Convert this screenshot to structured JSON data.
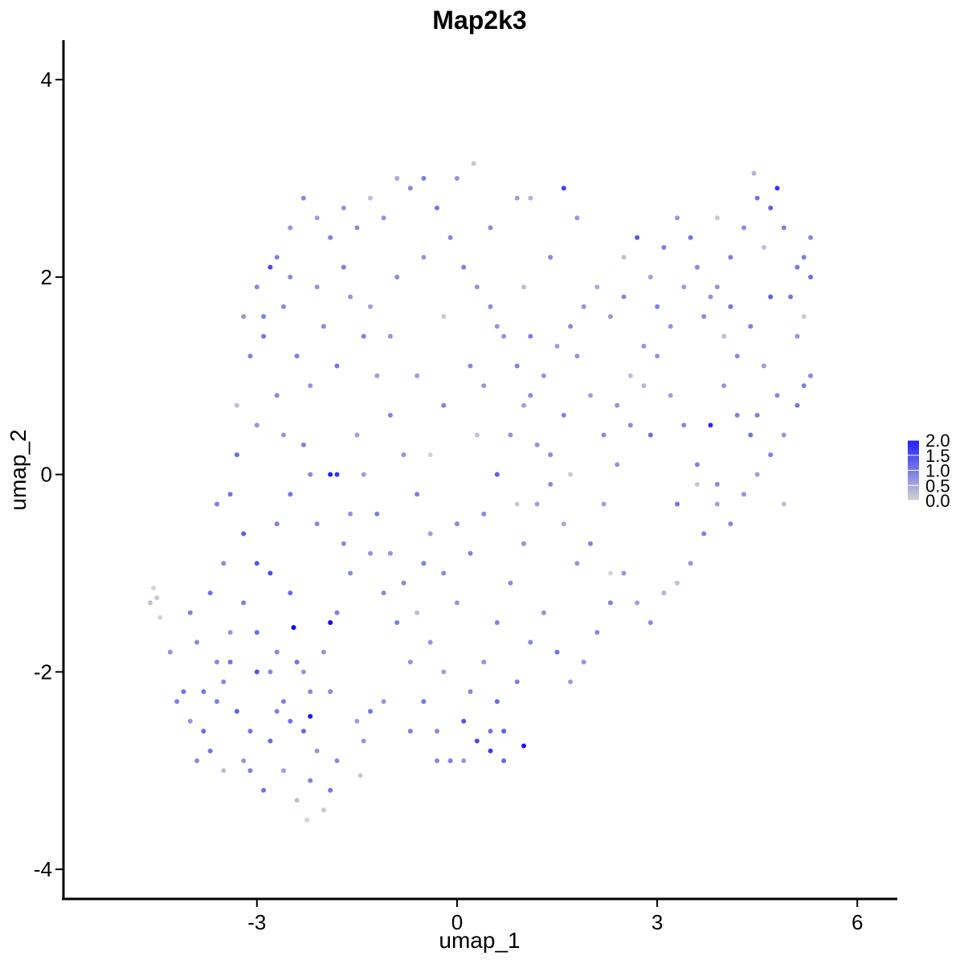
{
  "chart_data": {
    "type": "scatter",
    "title": "Map2k3",
    "xlabel": "umap_1",
    "ylabel": "umap_2",
    "xlim": [
      -5.9,
      6.6
    ],
    "ylim": [
      -4.3,
      4.4
    ],
    "xticks": [
      -3,
      0,
      3,
      6
    ],
    "xtick_labels": [
      "-3",
      "0",
      "3",
      "6"
    ],
    "yticks": [
      -4,
      -2,
      0,
      2,
      4
    ],
    "ytick_labels": [
      "-4",
      "-2",
      "0",
      "2",
      "4"
    ],
    "grid": false,
    "point_color_low": "#d3d3d3",
    "point_color_high": "#0000ff",
    "color_scale": {
      "min": 0.0,
      "max": 2.0,
      "ticks": [
        0.0,
        0.5,
        1.0,
        1.5,
        2.0
      ],
      "tick_labels": [
        "0.0",
        "0.5",
        "1.0",
        "1.5",
        "2.0"
      ],
      "placement": "right"
    },
    "points": [
      [
        -4.6,
        -1.3,
        0.2
      ],
      [
        -4.5,
        -1.25,
        0.1
      ],
      [
        -4.55,
        -1.15,
        0.0
      ],
      [
        -4.45,
        -1.45,
        0.0
      ],
      [
        -4.3,
        -1.8,
        0.6
      ],
      [
        -4.1,
        -2.2,
        0.9
      ],
      [
        -4.0,
        -1.4,
        0.8
      ],
      [
        -3.9,
        -1.7,
        0.7
      ],
      [
        -3.8,
        -2.6,
        1.0
      ],
      [
        -3.7,
        -2.8,
        0.9
      ],
      [
        -3.6,
        -2.3,
        0.8
      ],
      [
        -3.5,
        -2.1,
        0.7
      ],
      [
        -3.4,
        -1.9,
        0.9
      ],
      [
        -3.3,
        -2.4,
        1.1
      ],
      [
        -3.2,
        -2.9,
        0.6
      ],
      [
        -3.1,
        -3.0,
        0.8
      ],
      [
        -3.0,
        -2.0,
        1.2
      ],
      [
        -2.9,
        -3.2,
        0.9
      ],
      [
        -2.8,
        -2.7,
        1.0
      ],
      [
        -2.7,
        -1.8,
        0.7
      ],
      [
        -2.6,
        -3.0,
        0.5
      ],
      [
        -2.5,
        -2.5,
        0.9
      ],
      [
        -2.4,
        -3.3,
        0.2
      ],
      [
        -2.3,
        -2.6,
        1.0
      ],
      [
        -2.25,
        -3.5,
        0.0
      ],
      [
        -2.2,
        -3.1,
        0.8
      ],
      [
        -2.1,
        -2.8,
        0.6
      ],
      [
        -2.0,
        -3.4,
        0.1
      ],
      [
        -1.9,
        -3.2,
        0.9
      ],
      [
        -1.8,
        -2.9,
        0.7
      ],
      [
        -1.45,
        -3.05,
        0.1
      ],
      [
        -1.4,
        -2.7,
        0.6
      ],
      [
        -1.3,
        -2.4,
        0.9
      ],
      [
        -2.45,
        -1.55,
        2.0
      ],
      [
        -2.2,
        -2.45,
        1.8
      ],
      [
        -1.9,
        -1.5,
        1.9
      ],
      [
        -2.8,
        -1.0,
        1.3
      ],
      [
        -3.2,
        -0.6,
        1.1
      ],
      [
        -3.5,
        -0.9,
        0.7
      ],
      [
        -3.7,
        -1.2,
        0.9
      ],
      [
        -3.6,
        -0.3,
        0.8
      ],
      [
        -3.3,
        0.2,
        1.0
      ],
      [
        -3.0,
        0.5,
        0.6
      ],
      [
        -2.7,
        0.8,
        0.7
      ],
      [
        -2.5,
        -0.2,
        0.9
      ],
      [
        -2.3,
        0.3,
        0.8
      ],
      [
        -2.1,
        -0.5,
        0.7
      ],
      [
        -1.9,
        0.0,
        1.7
      ],
      [
        -1.8,
        0.0,
        1.5
      ],
      [
        -1.6,
        -0.4,
        0.6
      ],
      [
        -1.5,
        0.4,
        0.5
      ],
      [
        -1.3,
        -0.8,
        0.6
      ],
      [
        -1.1,
        -1.2,
        0.7
      ],
      [
        -0.9,
        -1.5,
        0.8
      ],
      [
        -0.7,
        -1.9,
        0.6
      ],
      [
        -0.5,
        -2.3,
        0.9
      ],
      [
        -0.3,
        -2.6,
        0.7
      ],
      [
        -0.1,
        -2.9,
        0.8
      ],
      [
        0.1,
        -2.5,
        1.2
      ],
      [
        0.3,
        -2.7,
        1.3
      ],
      [
        0.5,
        -2.8,
        1.4
      ],
      [
        0.6,
        -2.3,
        1.0
      ],
      [
        0.7,
        -2.6,
        1.1
      ],
      [
        1.0,
        -2.75,
        1.8
      ],
      [
        0.9,
        -2.1,
        0.8
      ],
      [
        1.1,
        -1.7,
        0.7
      ],
      [
        1.3,
        -1.4,
        0.6
      ],
      [
        1.5,
        -1.8,
        0.9
      ],
      [
        1.7,
        -2.1,
        0.5
      ],
      [
        1.9,
        -1.9,
        0.6
      ],
      [
        2.1,
        -1.6,
        0.7
      ],
      [
        2.3,
        -1.3,
        0.8
      ],
      [
        2.5,
        -1.0,
        0.6
      ],
      [
        2.7,
        -1.3,
        0.5
      ],
      [
        2.9,
        -1.5,
        0.7
      ],
      [
        3.1,
        -1.2,
        0.3
      ],
      [
        3.3,
        -1.1,
        0.2
      ],
      [
        3.5,
        -0.9,
        0.6
      ],
      [
        3.7,
        -0.6,
        0.8
      ],
      [
        3.9,
        -0.3,
        0.5
      ],
      [
        4.1,
        -0.5,
        0.7
      ],
      [
        4.3,
        -0.2,
        0.6
      ],
      [
        4.5,
        0.0,
        0.5
      ],
      [
        4.7,
        0.2,
        0.8
      ],
      [
        4.9,
        0.4,
        0.6
      ],
      [
        5.1,
        0.7,
        0.9
      ],
      [
        5.2,
        0.9,
        0.8
      ],
      [
        5.3,
        1.0,
        0.7
      ],
      [
        5.1,
        1.4,
        0.6
      ],
      [
        5.0,
        1.8,
        0.9
      ],
      [
        5.2,
        2.2,
        0.8
      ],
      [
        5.3,
        2.4,
        0.7
      ],
      [
        5.3,
        2.0,
        1.0
      ],
      [
        5.1,
        2.1,
        0.9
      ],
      [
        4.9,
        2.5,
        0.8
      ],
      [
        4.7,
        2.7,
        1.1
      ],
      [
        4.5,
        2.8,
        0.9
      ],
      [
        4.45,
        3.05,
        0.3
      ],
      [
        4.3,
        2.5,
        0.7
      ],
      [
        4.1,
        2.2,
        0.8
      ],
      [
        4.8,
        2.9,
        1.5
      ],
      [
        3.9,
        1.9,
        0.6
      ],
      [
        3.7,
        1.6,
        0.7
      ],
      [
        3.5,
        2.4,
        0.9
      ],
      [
        3.3,
        2.6,
        0.6
      ],
      [
        3.1,
        2.3,
        0.8
      ],
      [
        2.9,
        2.0,
        0.5
      ],
      [
        2.7,
        2.4,
        1.2
      ],
      [
        2.5,
        1.8,
        0.7
      ],
      [
        2.3,
        1.6,
        0.6
      ],
      [
        2.1,
        1.9,
        0.4
      ],
      [
        1.9,
        1.7,
        0.6
      ],
      [
        1.7,
        1.5,
        0.7
      ],
      [
        1.5,
        1.3,
        0.5
      ],
      [
        1.3,
        1.0,
        0.6
      ],
      [
        1.1,
        0.8,
        0.7
      ],
      [
        0.9,
        1.1,
        0.8
      ],
      [
        0.7,
        1.4,
        0.6
      ],
      [
        0.5,
        1.7,
        0.7
      ],
      [
        0.3,
        1.9,
        0.6
      ],
      [
        0.1,
        2.1,
        0.8
      ],
      [
        -0.1,
        2.4,
        0.7
      ],
      [
        -0.3,
        2.7,
        0.9
      ],
      [
        -0.5,
        3.0,
        0.8
      ],
      [
        -0.7,
        2.9,
        0.7
      ],
      [
        -0.9,
        3.0,
        0.4
      ],
      [
        -1.1,
        2.6,
        0.6
      ],
      [
        -1.3,
        2.8,
        0.2
      ],
      [
        -1.5,
        2.5,
        0.7
      ],
      [
        -1.7,
        2.7,
        0.6
      ],
      [
        -1.9,
        2.4,
        0.8
      ],
      [
        -2.1,
        2.6,
        0.5
      ],
      [
        -2.3,
        2.8,
        0.7
      ],
      [
        -2.5,
        2.5,
        0.6
      ],
      [
        -2.7,
        2.2,
        0.8
      ],
      [
        -2.8,
        2.1,
        1.3
      ],
      [
        -3.0,
        1.9,
        0.7
      ],
      [
        -3.2,
        1.6,
        0.6
      ],
      [
        -3.1,
        1.2,
        0.8
      ],
      [
        -3.3,
        0.7,
        0.2
      ],
      [
        -2.9,
        1.4,
        0.9
      ],
      [
        -2.6,
        1.7,
        0.7
      ],
      [
        -2.4,
        1.2,
        0.8
      ],
      [
        -2.2,
        0.9,
        0.6
      ],
      [
        -2.0,
        1.5,
        0.7
      ],
      [
        -1.8,
        1.1,
        0.9
      ],
      [
        -1.6,
        1.8,
        0.6
      ],
      [
        -1.4,
        1.4,
        0.8
      ],
      [
        -1.2,
        1.0,
        0.5
      ],
      [
        -1.0,
        0.6,
        0.7
      ],
      [
        -0.8,
        0.2,
        0.6
      ],
      [
        -0.6,
        -0.2,
        0.8
      ],
      [
        -0.4,
        -0.6,
        0.5
      ],
      [
        -0.2,
        -1.0,
        0.7
      ],
      [
        0.0,
        -1.3,
        0.6
      ],
      [
        0.2,
        -0.8,
        0.8
      ],
      [
        0.4,
        -0.4,
        0.7
      ],
      [
        0.6,
        0.0,
        1.1
      ],
      [
        0.8,
        0.4,
        0.6
      ],
      [
        1.0,
        0.7,
        0.5
      ],
      [
        1.2,
        0.3,
        0.6
      ],
      [
        1.4,
        -0.1,
        0.7
      ],
      [
        1.6,
        -0.5,
        0.4
      ],
      [
        1.8,
        -0.9,
        0.6
      ],
      [
        2.0,
        -0.7,
        0.8
      ],
      [
        2.2,
        -0.3,
        0.5
      ],
      [
        2.4,
        0.1,
        0.6
      ],
      [
        2.6,
        0.5,
        0.7
      ],
      [
        2.8,
        0.9,
        0.3
      ],
      [
        3.0,
        1.2,
        0.6
      ],
      [
        3.2,
        0.8,
        0.5
      ],
      [
        3.4,
        0.5,
        0.7
      ],
      [
        3.6,
        0.1,
        0.8
      ],
      [
        3.8,
        0.5,
        1.6
      ],
      [
        4.0,
        0.9,
        0.6
      ],
      [
        4.2,
        1.2,
        0.7
      ],
      [
        4.4,
        1.5,
        0.8
      ],
      [
        4.6,
        1.1,
        0.5
      ],
      [
        4.8,
        0.8,
        0.7
      ],
      [
        4.4,
        0.4,
        0.9
      ],
      [
        4.2,
        0.6,
        0.8
      ],
      [
        4.0,
        1.4,
        0.2
      ],
      [
        3.8,
        1.8,
        0.6
      ],
      [
        3.6,
        2.1,
        0.7
      ],
      [
        3.4,
        1.9,
        0.5
      ],
      [
        3.2,
        1.5,
        0.6
      ],
      [
        3.0,
        1.7,
        0.8
      ],
      [
        2.8,
        1.3,
        0.6
      ],
      [
        2.6,
        1.0,
        0.2
      ],
      [
        2.4,
        0.7,
        0.6
      ],
      [
        2.2,
        0.4,
        0.7
      ],
      [
        2.0,
        0.8,
        0.5
      ],
      [
        1.8,
        1.2,
        0.6
      ],
      [
        1.6,
        0.6,
        0.8
      ],
      [
        1.4,
        0.2,
        0.7
      ],
      [
        1.2,
        -0.3,
        0.5
      ],
      [
        1.0,
        -0.7,
        0.6
      ],
      [
        0.8,
        -1.1,
        0.7
      ],
      [
        0.6,
        -1.5,
        0.8
      ],
      [
        0.4,
        -1.9,
        0.6
      ],
      [
        0.2,
        -2.2,
        0.7
      ],
      [
        -0.2,
        -2.0,
        0.5
      ],
      [
        -0.4,
        -1.7,
        0.6
      ],
      [
        -0.6,
        -1.4,
        0.2
      ],
      [
        -0.8,
        -1.1,
        0.7
      ],
      [
        -1.0,
        -0.8,
        0.6
      ],
      [
        -1.2,
        -0.4,
        0.8
      ],
      [
        -1.4,
        0.0,
        0.5
      ],
      [
        -1.6,
        -1.0,
        0.7
      ],
      [
        -1.8,
        -1.4,
        0.8
      ],
      [
        -2.0,
        -1.8,
        0.6
      ],
      [
        -2.2,
        -2.2,
        0.7
      ],
      [
        -2.4,
        -1.9,
        0.9
      ],
      [
        -2.6,
        -2.3,
        0.8
      ],
      [
        -2.8,
        -2.0,
        0.7
      ],
      [
        -3.0,
        -1.6,
        1.0
      ],
      [
        -3.2,
        -1.3,
        0.8
      ],
      [
        -3.4,
        -1.6,
        0.6
      ],
      [
        -3.6,
        -1.9,
        0.7
      ],
      [
        -3.8,
        -2.2,
        0.9
      ],
      [
        -4.0,
        -2.5,
        0.6
      ],
      [
        -4.2,
        -2.3,
        0.8
      ],
      [
        -3.9,
        -2.9,
        0.7
      ],
      [
        -3.5,
        -3.0,
        0.2
      ],
      [
        -3.1,
        -2.6,
        0.9
      ],
      [
        -2.7,
        -2.4,
        0.8
      ],
      [
        -2.3,
        -2.0,
        0.6
      ],
      [
        -1.9,
        -2.2,
        0.7
      ],
      [
        -1.5,
        -2.5,
        0.5
      ],
      [
        -1.1,
        -2.3,
        0.6
      ],
      [
        -0.7,
        -2.6,
        0.8
      ],
      [
        -0.3,
        -2.9,
        0.7
      ],
      [
        0.1,
        -2.9,
        0.6
      ],
      [
        0.5,
        -2.6,
        0.9
      ],
      [
        0.7,
        -2.9,
        1.0
      ],
      [
        -0.5,
        2.2,
        0.6
      ],
      [
        -0.9,
        2.0,
        0.7
      ],
      [
        -1.3,
        1.7,
        0.5
      ],
      [
        -1.7,
        2.1,
        0.8
      ],
      [
        -2.1,
        1.9,
        0.6
      ],
      [
        -2.5,
        2.0,
        0.7
      ],
      [
        -2.9,
        1.6,
        0.8
      ],
      [
        -2.6,
        0.4,
        0.6
      ],
      [
        -2.2,
        0.0,
        0.7
      ],
      [
        -1.0,
        1.4,
        0.6
      ],
      [
        -0.6,
        1.0,
        0.5
      ],
      [
        -0.2,
        0.7,
        0.8
      ],
      [
        0.2,
        1.1,
        0.7
      ],
      [
        0.6,
        1.5,
        0.6
      ],
      [
        1.0,
        1.9,
        0.2
      ],
      [
        1.4,
        2.2,
        0.7
      ],
      [
        1.8,
        2.6,
        0.6
      ],
      [
        0.9,
        2.8,
        0.5
      ],
      [
        0.5,
        2.5,
        0.7
      ],
      [
        0.0,
        3.0,
        0.6
      ],
      [
        0.25,
        3.15,
        0.1
      ],
      [
        1.6,
        2.9,
        1.4
      ],
      [
        1.1,
        2.8,
        0.3
      ],
      [
        -0.2,
        1.6,
        0.1
      ],
      [
        0.3,
        0.4,
        0.2
      ],
      [
        1.7,
        0.0,
        0.1
      ],
      [
        2.3,
        -1.0,
        0.0
      ],
      [
        0.9,
        -0.3,
        0.1
      ],
      [
        -0.4,
        0.2,
        0.0
      ],
      [
        3.6,
        -0.1,
        0.1
      ],
      [
        4.9,
        -0.3,
        0.2
      ],
      [
        5.2,
        1.6,
        0.1
      ],
      [
        4.6,
        2.3,
        0.2
      ],
      [
        3.9,
        2.6,
        0.1
      ],
      [
        2.5,
        2.2,
        0.2
      ],
      [
        -3.4,
        -0.2,
        0.9
      ],
      [
        -3.0,
        -0.9,
        1.2
      ],
      [
        -2.7,
        -0.5,
        0.8
      ],
      [
        -2.5,
        -1.2,
        1.0
      ],
      [
        -1.7,
        -0.7,
        0.7
      ],
      [
        -0.5,
        -0.9,
        0.8
      ],
      [
        0.0,
        -0.5,
        0.7
      ],
      [
        0.4,
        0.9,
        0.6
      ],
      [
        1.1,
        1.4,
        0.8
      ],
      [
        2.9,
        0.4,
        1.0
      ],
      [
        3.3,
        -0.3,
        0.9
      ],
      [
        3.9,
        -0.1,
        0.7
      ],
      [
        4.5,
        0.6,
        0.8
      ],
      [
        4.7,
        1.8,
        1.1
      ],
      [
        4.1,
        1.7,
        0.9
      ]
    ]
  }
}
